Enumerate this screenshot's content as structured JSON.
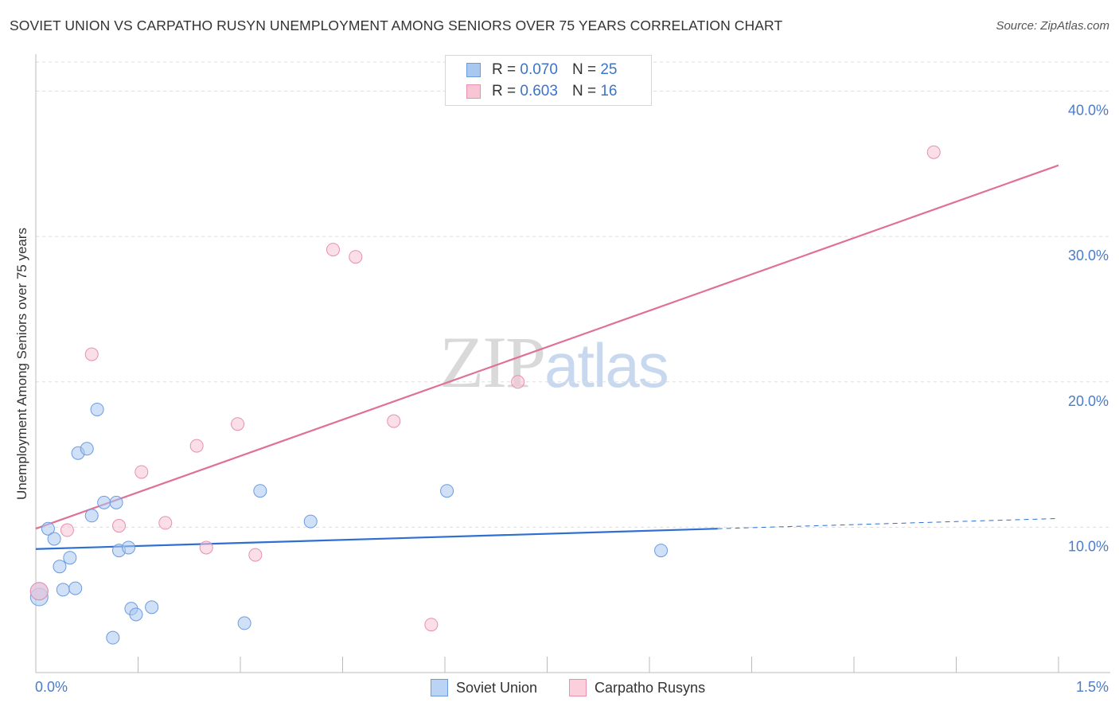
{
  "title": "SOVIET UNION VS CARPATHO RUSYN UNEMPLOYMENT AMONG SENIORS OVER 75 YEARS CORRELATION CHART",
  "source": "Source: ZipAtlas.com",
  "watermark": {
    "zip": "ZIP",
    "atlas": "atlas"
  },
  "legend": {
    "rows": [
      {
        "r_label": "R =",
        "r_value": "0.070",
        "n_label": "N =",
        "n_value": "25",
        "color": "#a9c8f0",
        "border": "#6a9be0"
      },
      {
        "r_label": "R =",
        "r_value": "0.603",
        "n_label": "N =",
        "n_value": "16",
        "color": "#f8c5d5",
        "border": "#e890ac"
      }
    ]
  },
  "bottom_legend": [
    {
      "label": "Soviet Union",
      "color": "#bcd4f4",
      "border": "#6a9be0"
    },
    {
      "label": "Carpatho Rusyns",
      "color": "#fbd0dd",
      "border": "#e890ac"
    }
  ],
  "chart_data": {
    "type": "scatter",
    "title": "SOVIET UNION VS CARPATHO RUSYN UNEMPLOYMENT AMONG SENIORS OVER 75 YEARS CORRELATION CHART",
    "xlabel": "",
    "ylabel": "Unemployment Among Seniors over 75 years",
    "xlim": [
      0,
      1.5
    ],
    "ylim": [
      0,
      42
    ],
    "x_tick_labels": [
      "0.0%",
      "1.5%"
    ],
    "y_ticks": [
      10,
      20,
      30,
      40
    ],
    "y_tick_labels": [
      "10.0%",
      "20.0%",
      "30.0%",
      "40.0%"
    ],
    "grid": true,
    "series": [
      {
        "name": "Soviet Union",
        "color": "#a9c8f0",
        "stroke": "#6a9be0",
        "line_color": "#2f6fcf",
        "points": [
          [
            0.005,
            5.2
          ],
          [
            0.005,
            5.6
          ],
          [
            0.018,
            9.9
          ],
          [
            0.027,
            9.2
          ],
          [
            0.035,
            7.3
          ],
          [
            0.04,
            5.7
          ],
          [
            0.05,
            7.9
          ],
          [
            0.058,
            5.8
          ],
          [
            0.062,
            15.1
          ],
          [
            0.075,
            15.4
          ],
          [
            0.082,
            10.8
          ],
          [
            0.09,
            18.1
          ],
          [
            0.1,
            11.7
          ],
          [
            0.113,
            2.4
          ],
          [
            0.118,
            11.7
          ],
          [
            0.122,
            8.4
          ],
          [
            0.136,
            8.6
          ],
          [
            0.14,
            4.4
          ],
          [
            0.147,
            4.0
          ],
          [
            0.17,
            4.5
          ],
          [
            0.306,
            3.4
          ],
          [
            0.329,
            12.5
          ],
          [
            0.403,
            10.4
          ],
          [
            0.603,
            12.5
          ],
          [
            0.917,
            8.4
          ]
        ],
        "trend": {
          "x0": 0.0,
          "y0": 8.5,
          "x1": 1.0,
          "y1": 9.9,
          "dashed_to_x": 1.5,
          "dashed_to_y": 10.6
        }
      },
      {
        "name": "Carpatho Rusyns",
        "color": "#f8c5d5",
        "stroke": "#e890ac",
        "line_color": "#e07096",
        "points": [
          [
            0.005,
            5.6
          ],
          [
            0.046,
            9.8
          ],
          [
            0.082,
            21.9
          ],
          [
            0.122,
            10.1
          ],
          [
            0.155,
            13.8
          ],
          [
            0.19,
            10.3
          ],
          [
            0.236,
            15.6
          ],
          [
            0.25,
            8.6
          ],
          [
            0.296,
            17.1
          ],
          [
            0.322,
            8.1
          ],
          [
            0.436,
            29.1
          ],
          [
            0.469,
            28.6
          ],
          [
            0.525,
            17.3
          ],
          [
            0.58,
            3.3
          ],
          [
            0.707,
            20.0
          ],
          [
            1.317,
            35.8
          ]
        ],
        "trend": {
          "x0": 0.0,
          "y0": 9.9,
          "x1": 1.5,
          "y1": 34.9
        }
      }
    ]
  }
}
